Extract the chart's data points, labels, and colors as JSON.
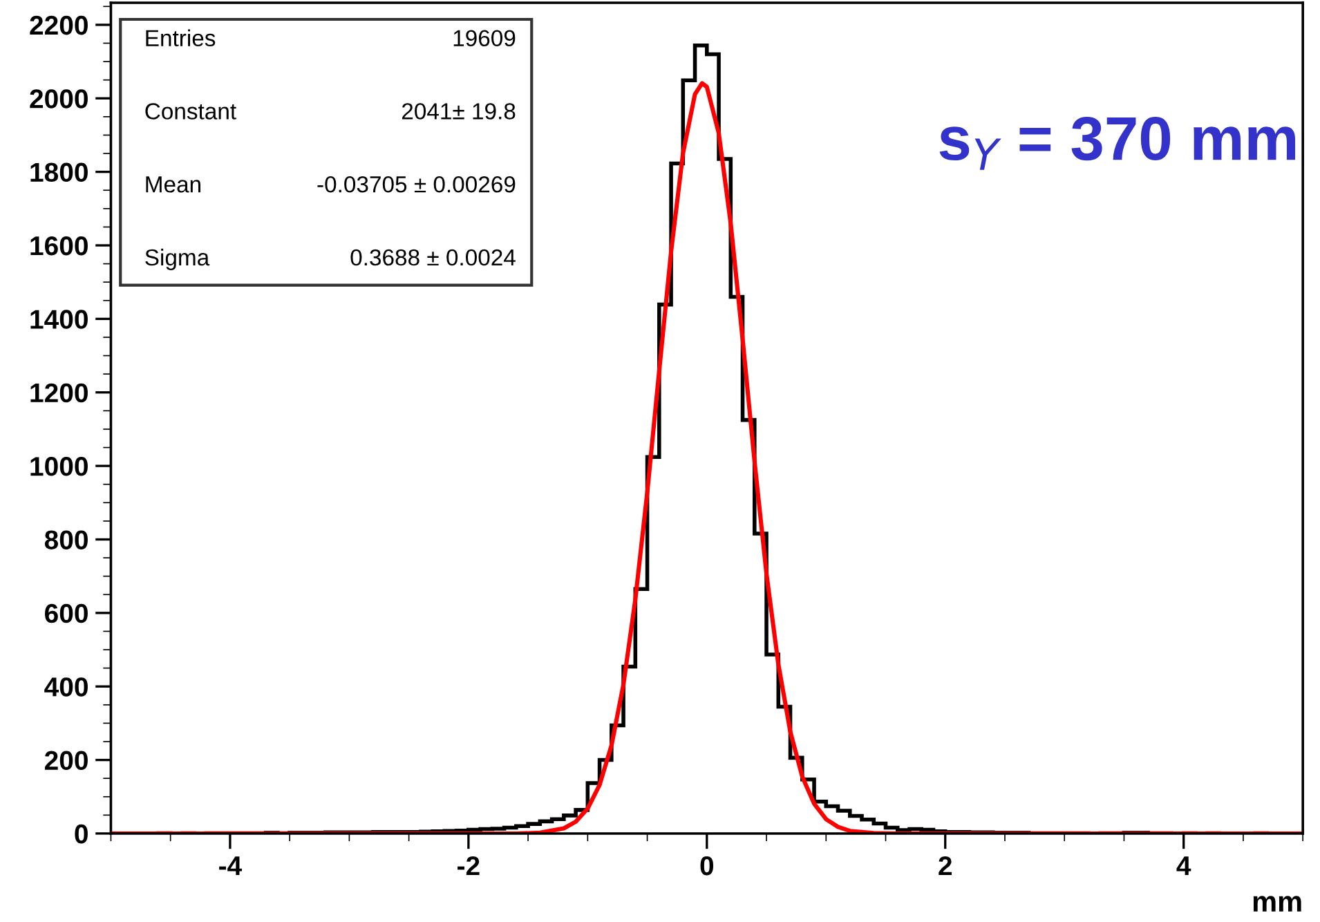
{
  "chart_data": {
    "type": "histogram",
    "xlabel": "mm",
    "annotations": [
      "s$_{Y}$ = 370 mm",
      "Entries",
      "19609",
      "Constant",
      "2041± 19.8",
      "Mean",
      "-0.03705 ± 0.00269",
      "Sigma",
      "0.3688 ± 0.0024"
    ],
    "bins": [
      -5.0,
      -4.9,
      -4.8,
      -4.7,
      -4.6,
      -4.5,
      -4.4,
      -4.3,
      -4.2,
      -4.1,
      -4.0,
      -3.9,
      -3.8,
      -3.7,
      -3.6,
      -3.5,
      -3.4,
      -3.3,
      -3.2,
      -3.1,
      -3.0,
      -2.9,
      -2.8,
      -2.7,
      -2.6,
      -2.5,
      -2.4,
      -2.3,
      -2.2,
      -2.1,
      -2.0,
      -1.9,
      -1.8,
      -1.7,
      -1.6,
      -1.5,
      -1.4,
      -1.3,
      -1.2,
      -1.1,
      -1.0,
      -0.9,
      -0.8,
      -0.7,
      -0.6,
      -0.5,
      -0.4,
      -0.3,
      -0.2,
      -0.1,
      0.0,
      0.1,
      0.2,
      0.3,
      0.4,
      0.5,
      0.6,
      0.7,
      0.8,
      0.9,
      1.0,
      1.1,
      1.2,
      1.3,
      1.4,
      1.5,
      1.6,
      1.7,
      1.8,
      1.9,
      2.0,
      2.1,
      2.2,
      2.3,
      2.4,
      2.5,
      2.6,
      2.7,
      2.8,
      2.9,
      3.0,
      3.1,
      3.2,
      3.3,
      3.4,
      3.5,
      3.6,
      3.7,
      3.8,
      3.9,
      4.0,
      4.1,
      4.2,
      4.3,
      4.4,
      4.5,
      4.6,
      4.7,
      4.8,
      4.9,
      5.0
    ],
    "series": [
      {
        "color": "#000000",
        "values": [
          0,
          0,
          0,
          0,
          1,
          0,
          1,
          0,
          1,
          1,
          1,
          1,
          1,
          2,
          1,
          2,
          2,
          2,
          3,
          3,
          3,
          3,
          4,
          4,
          4,
          4,
          5,
          6,
          7,
          8,
          10,
          12,
          13,
          16,
          20,
          26,
          33,
          39,
          49,
          64,
          137,
          200,
          294,
          454,
          665,
          1024,
          1439,
          1823,
          2049,
          2144,
          2120,
          1835,
          1460,
          1125,
          816,
          487,
          345,
          206,
          147,
          87,
          74,
          62,
          48,
          38,
          27,
          16,
          9,
          12,
          10,
          6,
          4,
          4,
          3,
          3,
          2,
          2,
          2,
          1,
          1,
          1,
          1,
          1,
          0,
          1,
          1,
          2,
          2,
          1,
          1,
          0,
          1,
          0,
          1,
          0,
          0,
          0,
          1,
          0,
          0,
          0
        ]
      },
      {
        "type": "line",
        "color": "#ff0000",
        "x": [
          -5,
          -1.6,
          -1.4,
          -1.2,
          -1.1,
          -1.0,
          -0.9,
          -0.8,
          -0.7,
          -0.6,
          -0.5,
          -0.4,
          -0.3,
          -0.2,
          -0.1,
          -0.04,
          0,
          0.1,
          0.2,
          0.3,
          0.4,
          0.5,
          0.6,
          0.7,
          0.8,
          0.9,
          1.0,
          1.1,
          1.2,
          1.4,
          1.6,
          5
        ],
        "values": [
          0,
          0,
          2,
          14,
          32,
          68,
          132,
          240,
          405,
          637,
          928,
          1258,
          1583,
          1851,
          2011,
          2041,
          2031,
          1905,
          1660,
          1345,
          1012,
          707,
          460,
          277,
          155,
          81,
          39,
          18,
          7,
          1,
          0,
          0
        ]
      }
    ],
    "xlim": [
      -5,
      5
    ],
    "xticks": [
      -4,
      -2,
      0,
      2,
      4
    ],
    "ylim": [
      0,
      2260
    ],
    "yticks": [
      0,
      200,
      400,
      600,
      800,
      1000,
      1200,
      1400,
      1600,
      1800,
      2000,
      2200
    ],
    "grid": false,
    "legend": false
  }
}
